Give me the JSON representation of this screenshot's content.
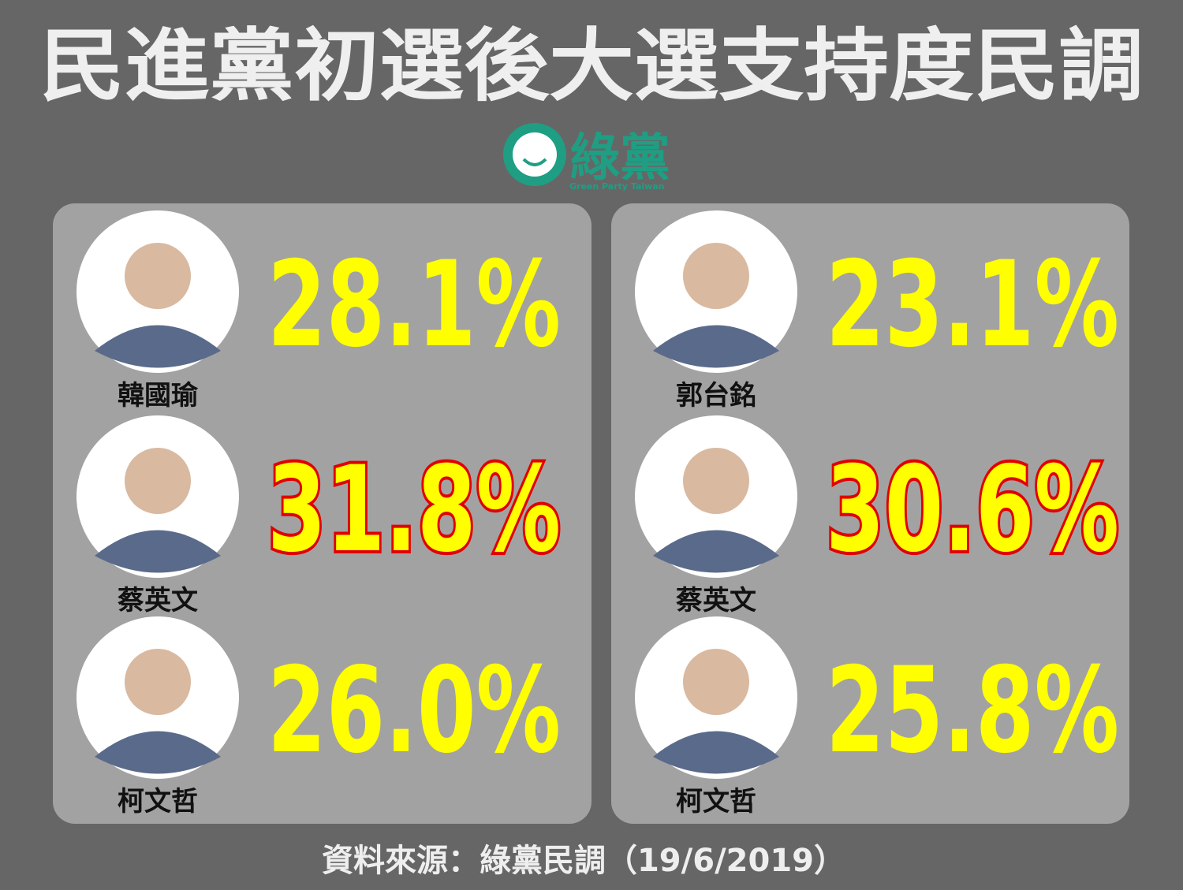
{
  "header": {
    "title": "民進黨初選後大選支持度民調"
  },
  "logo": {
    "name": "綠黨",
    "subtitle": "Green Party Taiwan"
  },
  "panels": [
    {
      "candidates": [
        {
          "name": "韓國瑜",
          "percent": "28.1%",
          "highlight": false
        },
        {
          "name": "蔡英文",
          "percent": "31.8%",
          "highlight": true
        },
        {
          "name": "柯文哲",
          "percent": "26.0%",
          "highlight": false
        }
      ]
    },
    {
      "candidates": [
        {
          "name": "郭台銘",
          "percent": "23.1%",
          "highlight": false
        },
        {
          "name": "蔡英文",
          "percent": "30.6%",
          "highlight": true
        },
        {
          "name": "柯文哲",
          "percent": "25.8%",
          "highlight": false
        }
      ]
    }
  ],
  "footer": {
    "source": "資料來源：綠黨民調（19/6/2019）"
  }
}
